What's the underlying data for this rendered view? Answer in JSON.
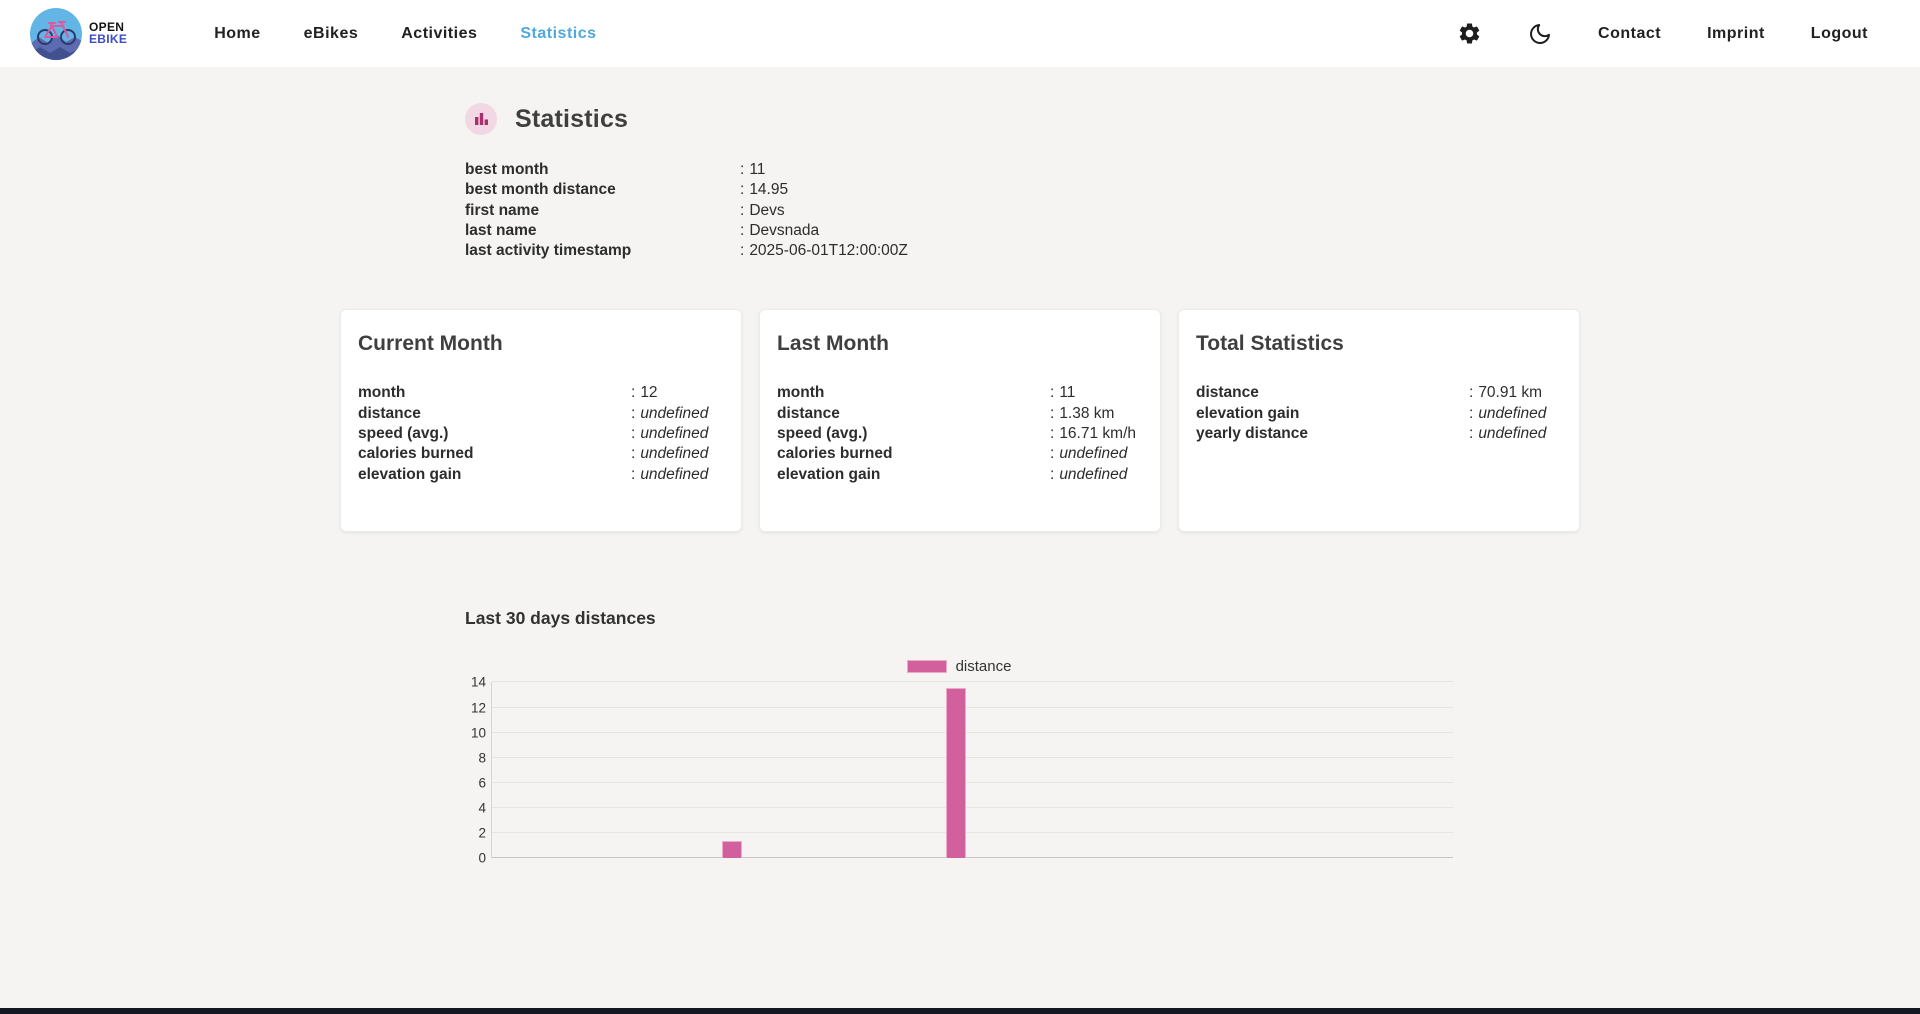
{
  "brand": {
    "line1": "OPEN",
    "line2": "EBIKE"
  },
  "ui": {
    "colon": ":"
  },
  "nav": {
    "items": [
      {
        "label": "Home",
        "active": false
      },
      {
        "label": "eBikes",
        "active": false
      },
      {
        "label": "Activities",
        "active": false
      },
      {
        "label": "Statistics",
        "active": true
      }
    ],
    "right_items": [
      {
        "label": "Contact"
      },
      {
        "label": "Imprint"
      },
      {
        "label": "Logout"
      }
    ]
  },
  "page": {
    "title": "Statistics"
  },
  "overview_stats": [
    {
      "label": "best month",
      "value": "11",
      "italic": false
    },
    {
      "label": "best month distance",
      "value": "14.95",
      "italic": false
    },
    {
      "label": "first name",
      "value": "Devs",
      "italic": false
    },
    {
      "label": "last name",
      "value": "Devsnada",
      "italic": false
    },
    {
      "label": "last activity timestamp",
      "value": "2025-06-01T12:00:00Z",
      "italic": false
    }
  ],
  "cards": [
    {
      "title": "Current Month",
      "rows": [
        {
          "label": "month",
          "value": "12",
          "italic": false
        },
        {
          "label": "distance",
          "value": "undefined",
          "italic": true
        },
        {
          "label": "speed (avg.)",
          "value": "undefined",
          "italic": true
        },
        {
          "label": "calories burned",
          "value": "undefined",
          "italic": true
        },
        {
          "label": "elevation gain",
          "value": "undefined",
          "italic": true
        }
      ]
    },
    {
      "title": "Last Month",
      "rows": [
        {
          "label": "month",
          "value": "11",
          "italic": false
        },
        {
          "label": "distance",
          "value": "1.38 km",
          "italic": false
        },
        {
          "label": "speed (avg.)",
          "value": "16.71 km/h",
          "italic": false
        },
        {
          "label": "calories burned",
          "value": "undefined",
          "italic": true
        },
        {
          "label": "elevation gain",
          "value": "undefined",
          "italic": true
        }
      ]
    },
    {
      "title": "Total Statistics",
      "rows": [
        {
          "label": "distance",
          "value": "70.91 km",
          "italic": false
        },
        {
          "label": "elevation gain",
          "value": "undefined",
          "italic": true
        },
        {
          "label": "yearly distance",
          "value": "undefined",
          "italic": true
        }
      ]
    }
  ],
  "chart_data": {
    "type": "bar",
    "title": "Last 30 days distances",
    "legend": [
      {
        "label": "distance",
        "color": "#d2609c",
        "border_color": "#eaabcc"
      }
    ],
    "legend_position": "top-center",
    "n_slots": 30,
    "values": [
      0,
      0,
      0,
      0,
      0,
      0,
      0,
      1.38,
      0,
      0,
      0,
      0,
      0,
      0,
      13.57,
      0,
      0,
      0,
      0,
      0,
      0,
      0,
      0,
      0,
      0,
      0,
      0,
      0,
      0,
      0
    ],
    "ylim": [
      0,
      14
    ],
    "y_ticks": [
      0,
      2,
      4,
      6,
      8,
      10,
      12,
      14
    ],
    "x_tick_labels": [],
    "grid": true
  },
  "colors": {
    "page_bg": "#f5f4f2",
    "navbar_bg": "#ffffff",
    "active_nav": "#4fa8de",
    "accent_pink": "#d2609c",
    "bar_border": "#eaabcc",
    "icon_badge_bg": "#f2d8e5",
    "icon_badge_fg": "#ab2f6b",
    "brand_blue": "#3c4ec1",
    "footer": "#131722"
  }
}
